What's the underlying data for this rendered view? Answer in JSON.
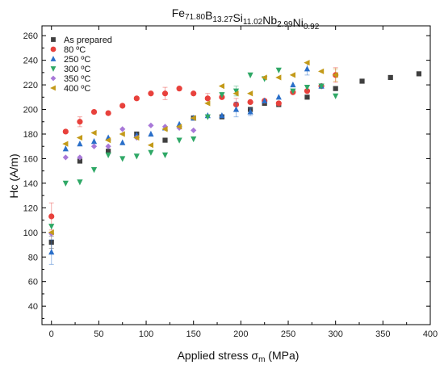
{
  "chart_data": {
    "type": "scatter",
    "title_parts": [
      {
        "base": "Fe",
        "sub": "71.80"
      },
      {
        "base": "B",
        "sub": "13.27"
      },
      {
        "base": "Si",
        "sub": "11.02"
      },
      {
        "base": "Nb",
        "sub": "2.99"
      },
      {
        "base": "Ni",
        "sub": "0.92"
      }
    ],
    "xlabel": {
      "main": "Applied stress σ",
      "sub": "m",
      "suffix": " (MPa)"
    },
    "ylabel": "Hc (A/m)",
    "xlim": [
      -10,
      400
    ],
    "ylim": [
      25,
      268
    ],
    "xticks": [
      0,
      50,
      100,
      150,
      200,
      250,
      300,
      350,
      400
    ],
    "yticks": [
      40,
      60,
      80,
      100,
      120,
      140,
      160,
      180,
      200,
      220,
      240,
      260
    ],
    "grid": false,
    "legend_position": "top-left",
    "series": [
      {
        "name": "As prepared",
        "marker": "square",
        "color": "#3f3f3f",
        "points": [
          [
            0,
            92
          ],
          [
            30,
            158
          ],
          [
            60,
            166
          ],
          [
            90,
            180
          ],
          [
            120,
            175
          ],
          [
            150,
            193
          ],
          [
            180,
            194
          ],
          [
            210,
            200
          ],
          [
            225,
            205
          ],
          [
            240,
            204
          ],
          [
            270,
            210
          ],
          [
            300,
            217
          ],
          [
            328,
            223
          ],
          [
            358,
            226
          ],
          [
            388,
            229
          ]
        ],
        "errors": [
          [
            0,
            92,
            5
          ]
        ]
      },
      {
        "name": "80 ºC",
        "marker": "circle",
        "color": "#e8413c",
        "points": [
          [
            0,
            113
          ],
          [
            15,
            182
          ],
          [
            30,
            190
          ],
          [
            45,
            198
          ],
          [
            60,
            197
          ],
          [
            75,
            203
          ],
          [
            90,
            209
          ],
          [
            105,
            213
          ],
          [
            120,
            213
          ],
          [
            135,
            217
          ],
          [
            150,
            213
          ],
          [
            165,
            209
          ],
          [
            180,
            210
          ],
          [
            195,
            204
          ],
          [
            210,
            206
          ],
          [
            225,
            207
          ],
          [
            240,
            205
          ],
          [
            255,
            214
          ],
          [
            270,
            215
          ],
          [
            285,
            219
          ],
          [
            300,
            228
          ]
        ],
        "errors": [
          [
            0,
            113,
            11
          ],
          [
            30,
            190,
            4
          ],
          [
            120,
            213,
            5
          ],
          [
            165,
            209,
            4
          ],
          [
            195,
            204,
            5
          ],
          [
            300,
            228,
            6
          ]
        ]
      },
      {
        "name": "250 ºC",
        "marker": "triangle-up",
        "color": "#2a6fc9",
        "points": [
          [
            0,
            84
          ],
          [
            15,
            168
          ],
          [
            30,
            172
          ],
          [
            45,
            174
          ],
          [
            60,
            177
          ],
          [
            75,
            173
          ],
          [
            90,
            179
          ],
          [
            105,
            180
          ],
          [
            120,
            185
          ],
          [
            135,
            188
          ],
          [
            150,
            193
          ],
          [
            165,
            195
          ],
          [
            180,
            195
          ],
          [
            195,
            200
          ],
          [
            210,
            198
          ],
          [
            225,
            207
          ],
          [
            240,
            210
          ],
          [
            255,
            220
          ],
          [
            270,
            233
          ],
          [
            285,
            219
          ]
        ],
        "errors": [
          [
            0,
            84,
            10
          ],
          [
            195,
            200,
            6
          ],
          [
            210,
            198,
            3
          ],
          [
            270,
            233,
            5
          ]
        ]
      },
      {
        "name": "300 ºC",
        "marker": "triangle-down",
        "color": "#2fa866",
        "points": [
          [
            0,
            105
          ],
          [
            15,
            140
          ],
          [
            30,
            141
          ],
          [
            45,
            151
          ],
          [
            60,
            163
          ],
          [
            75,
            160
          ],
          [
            90,
            162
          ],
          [
            105,
            165
          ],
          [
            120,
            163
          ],
          [
            135,
            175
          ],
          [
            150,
            176
          ],
          [
            165,
            194
          ],
          [
            180,
            212
          ],
          [
            195,
            215
          ],
          [
            210,
            228
          ],
          [
            225,
            225
          ],
          [
            240,
            232
          ],
          [
            255,
            215
          ],
          [
            270,
            218
          ],
          [
            285,
            219
          ],
          [
            300,
            211
          ]
        ],
        "errors": [
          [
            195,
            215,
            4
          ]
        ]
      },
      {
        "name": "350 ºC",
        "marker": "diamond",
        "color": "#a878d8",
        "points": [
          [
            0,
            99
          ],
          [
            15,
            161
          ],
          [
            30,
            161
          ],
          [
            45,
            170
          ],
          [
            60,
            170
          ],
          [
            75,
            184
          ],
          [
            90,
            177
          ],
          [
            105,
            187
          ],
          [
            120,
            186
          ],
          [
            135,
            185
          ],
          [
            150,
            183
          ]
        ],
        "errors": []
      },
      {
        "name": "400 ºC",
        "marker": "triangle-left",
        "color": "#c39a19",
        "points": [
          [
            0,
            100
          ],
          [
            15,
            172
          ],
          [
            30,
            177
          ],
          [
            45,
            181
          ],
          [
            60,
            175
          ],
          [
            75,
            180
          ],
          [
            90,
            177
          ],
          [
            105,
            171
          ],
          [
            120,
            184
          ],
          [
            135,
            186
          ],
          [
            150,
            193
          ],
          [
            165,
            205
          ],
          [
            180,
            219
          ],
          [
            195,
            213
          ],
          [
            210,
            213
          ],
          [
            225,
            226
          ],
          [
            240,
            226
          ],
          [
            255,
            228
          ],
          [
            270,
            238
          ],
          [
            285,
            231
          ],
          [
            300,
            228
          ]
        ],
        "errors": [
          [
            300,
            228,
            5
          ]
        ]
      }
    ]
  }
}
